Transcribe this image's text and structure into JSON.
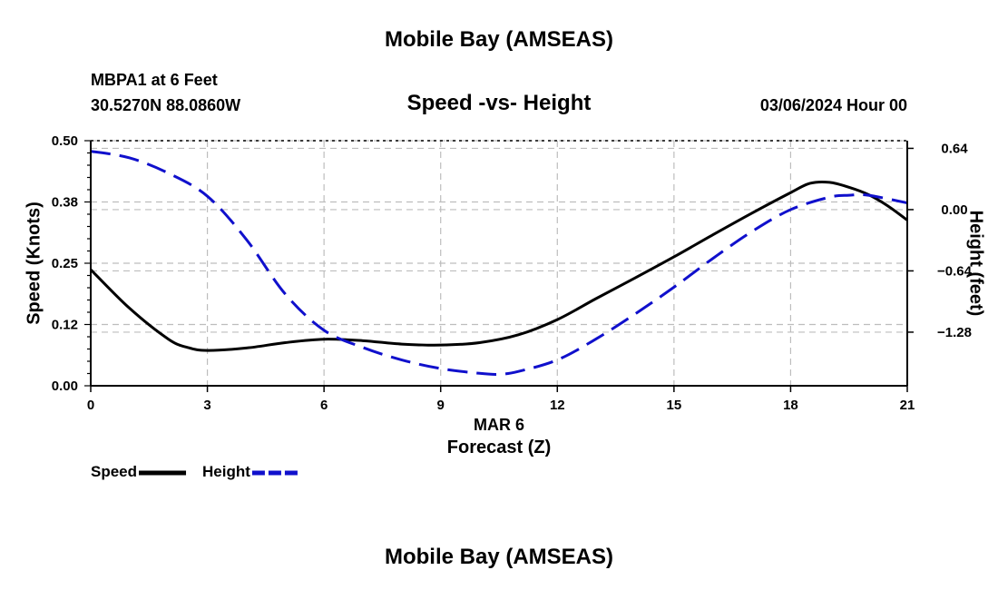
{
  "page": {
    "title_top": "Mobile Bay (AMSEAS)",
    "title_bottom": "Mobile Bay (AMSEAS)"
  },
  "header": {
    "station": "MBPA1 at 6 Feet",
    "coords": "30.5270N  88.0860W",
    "date": "03/06/2024 Hour 00"
  },
  "chart_data": {
    "type": "line",
    "title": "Speed -vs- Height",
    "xlabel_line1": "MAR 6",
    "xlabel": "Forecast (Z)",
    "ylabel": "Speed (Knots)",
    "y2label": "Height (feet)",
    "xlim": [
      0,
      21
    ],
    "ylim": [
      0,
      0.5
    ],
    "y2lim": [
      -1.84,
      0.72
    ],
    "x_ticks": [
      "0",
      "3",
      "6",
      "9",
      "12",
      "15",
      "18",
      "21"
    ],
    "x_tick_values": [
      0,
      3,
      6,
      9,
      12,
      15,
      18,
      21
    ],
    "y_ticks": [
      "0.00",
      "0.12",
      "0.25",
      "0.38",
      "0.50"
    ],
    "y_tick_values": [
      0.0,
      0.125,
      0.25,
      0.375,
      0.5
    ],
    "y2_ticks": [
      "0.64",
      "0.00",
      "−0.64",
      "−1.28"
    ],
    "y2_tick_values": [
      0.64,
      0.0,
      -0.64,
      -1.28
    ],
    "grid": true,
    "series": [
      {
        "name": "Speed",
        "axis": "left",
        "color": "#000000",
        "style": "solid",
        "x": [
          0,
          1,
          2,
          2.5,
          3,
          4,
          5,
          6,
          7,
          8,
          9,
          10,
          11,
          12,
          13,
          14,
          15,
          16,
          17,
          18,
          18.5,
          19,
          19.5,
          20,
          20.5,
          21
        ],
        "values": [
          0.237,
          0.158,
          0.095,
          0.078,
          0.072,
          0.077,
          0.088,
          0.095,
          0.092,
          0.085,
          0.083,
          0.088,
          0.104,
          0.135,
          0.178,
          0.22,
          0.263,
          0.308,
          0.352,
          0.394,
          0.413,
          0.415,
          0.405,
          0.39,
          0.367,
          0.338
        ],
        "values_scaled_note": ""
      },
      {
        "name": "Height",
        "axis": "right",
        "color": "#1010cc",
        "style": "dashed",
        "x": [
          0,
          1,
          2,
          3,
          4,
          5,
          6,
          7,
          8,
          9,
          10,
          10.5,
          11,
          12,
          13,
          14,
          15,
          16,
          17,
          18,
          19,
          19.5,
          20,
          21
        ],
        "values": [
          0.61,
          0.54,
          0.38,
          0.14,
          -0.31,
          -0.88,
          -1.26,
          -1.44,
          -1.57,
          -1.66,
          -1.71,
          -1.72,
          -1.69,
          -1.57,
          -1.35,
          -1.09,
          -0.81,
          -0.51,
          -0.23,
          0.0,
          0.13,
          0.15,
          0.15,
          0.07
        ]
      }
    ],
    "legend": [
      {
        "label": "Speed",
        "color": "#000000",
        "style": "solid"
      },
      {
        "label": "Height",
        "color": "#1010cc",
        "style": "dashed"
      }
    ],
    "legend_position": "bottom-left"
  }
}
